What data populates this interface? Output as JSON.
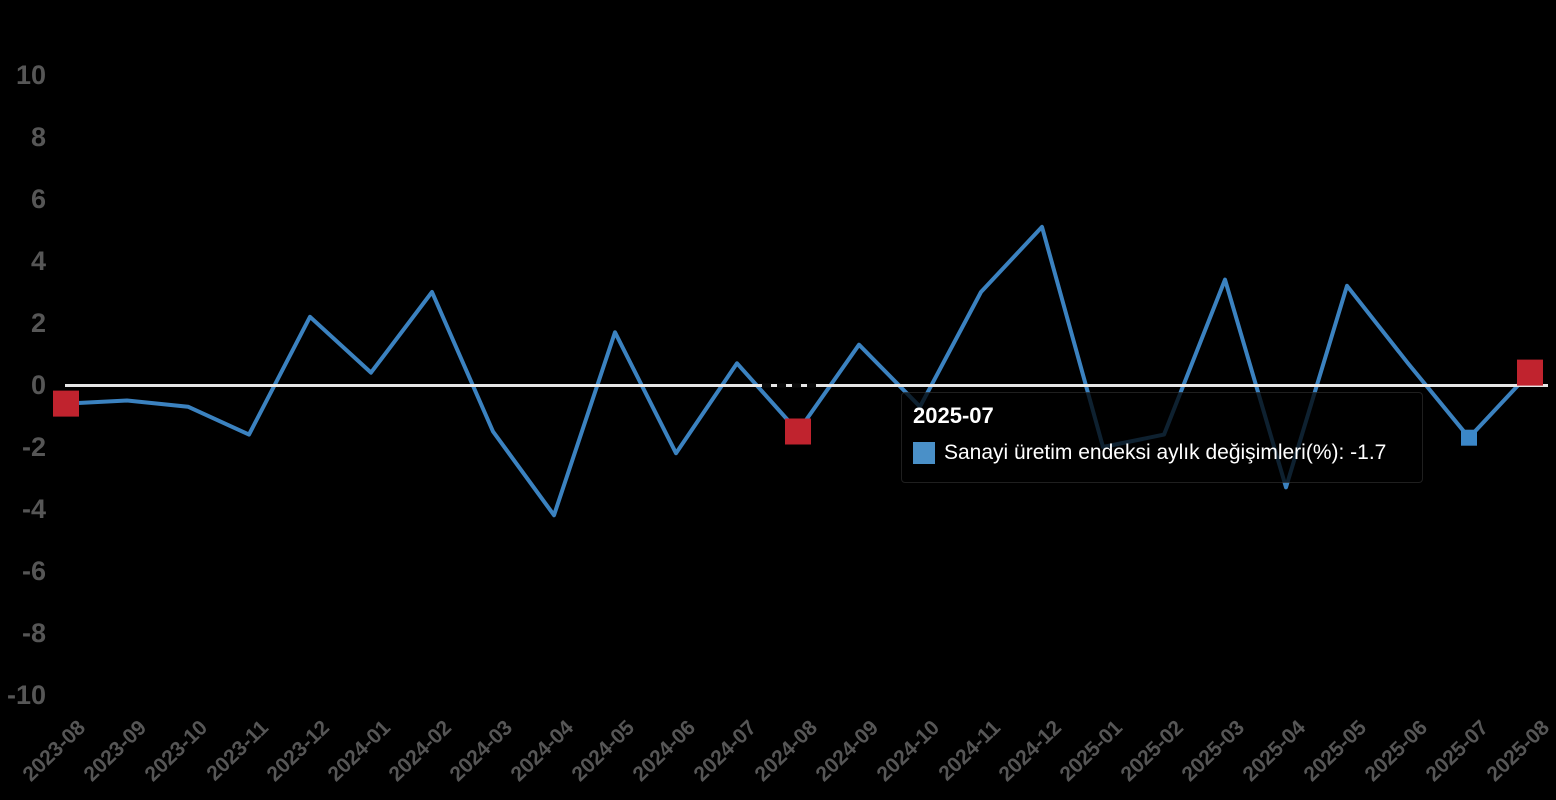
{
  "chart_data": {
    "type": "line",
    "title": "",
    "categories": [
      "2023-08",
      "2023-09",
      "2023-10",
      "2023-11",
      "2023-12",
      "2024-01",
      "2024-02",
      "2024-03",
      "2024-04",
      "2024-05",
      "2024-06",
      "2024-07",
      "2024-08",
      "2024-09",
      "2024-10",
      "2024-11",
      "2024-12",
      "2025-01",
      "2025-02",
      "2025-03",
      "2025-04",
      "2025-05",
      "2025-06",
      "2025-07",
      "2025-08"
    ],
    "series": [
      {
        "name": "Sanayi üretim endeksi aylık değişimleri(%)",
        "color": "#3b82c0",
        "values": [
          -0.6,
          -0.5,
          -0.7,
          -1.6,
          2.2,
          0.4,
          3.0,
          -1.5,
          -4.2,
          1.7,
          -2.2,
          0.7,
          -1.5,
          1.3,
          -0.7,
          3.0,
          5.1,
          -2.0,
          -1.6,
          3.4,
          -3.3,
          3.2,
          0.7,
          -1.7,
          0.4
        ]
      }
    ],
    "ylim": [
      -10,
      10
    ],
    "y_ticks": [
      "10",
      "8",
      "6",
      "4",
      "2",
      "0",
      "-2",
      "-4",
      "-6",
      "-8",
      "-10"
    ],
    "grid": false,
    "legend_position": "none",
    "zero_line_color": "#e6e6e6",
    "august_marker_color": "#c0232e",
    "august_marked_categories": [
      "2023-08",
      "2024-08",
      "2025-08"
    ],
    "hover": {
      "category": "2025-07",
      "value": -1.7,
      "marker_color": "#3b87c8"
    }
  },
  "tooltip": {
    "title": "2025-07",
    "series_label": "Sanayi üretim endeksi aylık değişimleri(%)",
    "value": "-1.7",
    "line": "Sanayi üretim endeksi aylık değişimleri(%): -1.7"
  }
}
